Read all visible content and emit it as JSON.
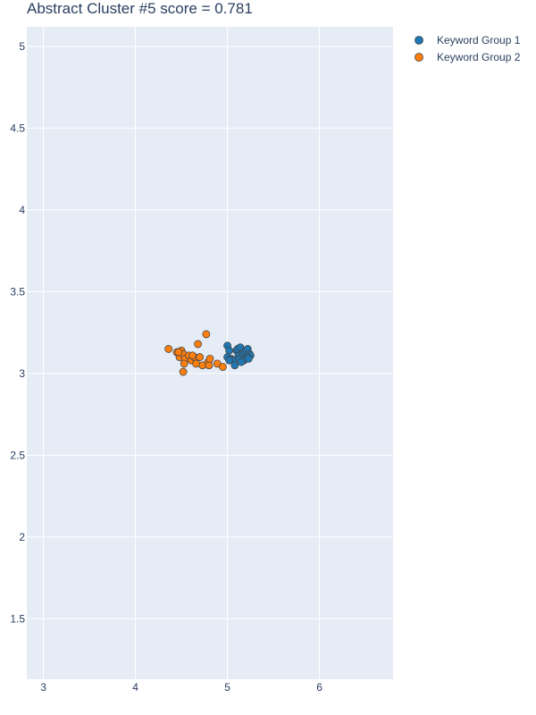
{
  "chart_data": {
    "type": "scatter",
    "title": "Abstract Cluster #5 score = 0.781",
    "xlabel": "",
    "ylabel": "",
    "xlim": [
      2.82,
      6.8
    ],
    "ylim": [
      1.13,
      5.12
    ],
    "xticks": [
      3,
      4,
      5,
      6
    ],
    "yticks": [
      1.5,
      2,
      2.5,
      3,
      3.5,
      4,
      4.5,
      5
    ],
    "grid": true,
    "legend_position": "top-right",
    "colors": {
      "plot_bg": "#e5ecf6",
      "grid": "#ffffff",
      "marker_outline": "#444444"
    },
    "series": [
      {
        "name": "Keyword Group 1",
        "color": "#1f77b4",
        "points": [
          [
            5.0,
            3.17
          ],
          [
            5.02,
            3.14
          ],
          [
            5.0,
            3.1
          ],
          [
            5.04,
            3.09
          ],
          [
            5.06,
            3.08
          ],
          [
            5.08,
            3.05
          ],
          [
            5.1,
            3.14
          ],
          [
            5.12,
            3.11
          ],
          [
            5.11,
            3.15
          ],
          [
            5.14,
            3.16
          ],
          [
            5.13,
            3.09
          ],
          [
            5.16,
            3.12
          ],
          [
            5.18,
            3.13
          ],
          [
            5.2,
            3.14
          ],
          [
            5.22,
            3.15
          ],
          [
            5.24,
            3.12
          ],
          [
            5.25,
            3.11
          ],
          [
            5.2,
            3.09
          ],
          [
            5.22,
            3.1
          ],
          [
            5.18,
            3.08
          ],
          [
            5.15,
            3.07
          ],
          [
            5.02,
            3.08
          ],
          [
            5.23,
            3.09
          ]
        ]
      },
      {
        "name": "Keyword Group 2",
        "color": "#ff7f0e",
        "points": [
          [
            4.36,
            3.15
          ],
          [
            4.45,
            3.13
          ],
          [
            4.48,
            3.1
          ],
          [
            4.5,
            3.14
          ],
          [
            4.52,
            3.12
          ],
          [
            4.54,
            3.09
          ],
          [
            4.53,
            3.06
          ],
          [
            4.52,
            3.01
          ],
          [
            4.58,
            3.11
          ],
          [
            4.61,
            3.08
          ],
          [
            4.64,
            3.1
          ],
          [
            4.66,
            3.06
          ],
          [
            4.68,
            3.18
          ],
          [
            4.7,
            3.1
          ],
          [
            4.73,
            3.05
          ],
          [
            4.77,
            3.24
          ],
          [
            4.79,
            3.07
          ],
          [
            4.8,
            3.05
          ],
          [
            4.81,
            3.09
          ],
          [
            4.89,
            3.06
          ],
          [
            4.95,
            3.04
          ],
          [
            4.47,
            3.13
          ],
          [
            4.62,
            3.11
          ]
        ]
      }
    ]
  }
}
